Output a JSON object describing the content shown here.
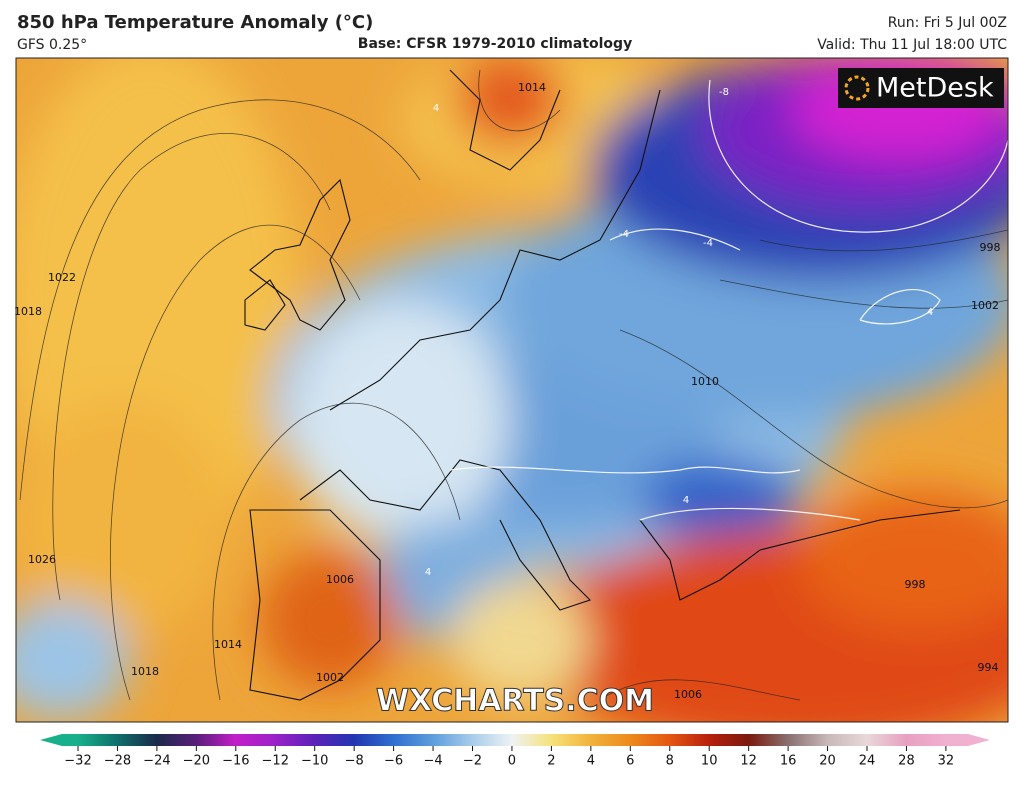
{
  "header": {
    "title": "850 hPa Temperature Anomaly (°C)",
    "model": "GFS 0.25°",
    "base": "Base: CFSR 1979-2010 climatology",
    "run": "Run: Fri 5 Jul 00Z",
    "valid": "Valid: Thu 11 Jul 18:00 UTC"
  },
  "logo": "MetDesk",
  "watermark": "WXCHARTS.COM",
  "isobar_labels": [
    "1014",
    "1022",
    "1018",
    "1026",
    "1006",
    "1014",
    "1018",
    "1002",
    "1006",
    "1010",
    "998",
    "1002",
    "998",
    "994"
  ],
  "anomaly_labels": [
    "-8",
    "-4",
    "-4",
    "4",
    "4",
    "4",
    "4"
  ],
  "colorbar": {
    "ticks": [
      {
        "value": -32,
        "label": "−32"
      },
      {
        "value": -28,
        "label": "−28"
      },
      {
        "value": -24,
        "label": "−24"
      },
      {
        "value": -20,
        "label": "−20"
      },
      {
        "value": -16,
        "label": "−16"
      },
      {
        "value": -12,
        "label": "−12"
      },
      {
        "value": -10,
        "label": "−10"
      },
      {
        "value": -8,
        "label": "−8"
      },
      {
        "value": -6,
        "label": "−6"
      },
      {
        "value": -4,
        "label": "−4"
      },
      {
        "value": -2,
        "label": "−2"
      },
      0,
      2,
      4,
      6,
      8,
      10,
      12,
      16,
      20,
      24,
      28,
      32
    ],
    "colors": [
      "#18b08a",
      "#0f6f6a",
      "#1a2a4a",
      "#5a1f7a",
      "#c21fc8",
      "#9a22c8",
      "#5a22b8",
      "#2236b0",
      "#2f6fd0",
      "#5e9edc",
      "#a9cceb",
      "#eef2f4",
      "#f6e27a",
      "#f2b23a",
      "#ec8a1c",
      "#e45612",
      "#b8200e",
      "#7a1a0e",
      "#8a7070",
      "#c8b8b8",
      "#e8d8d8",
      "#e8a0c0",
      "#f0b0d0"
    ]
  }
}
